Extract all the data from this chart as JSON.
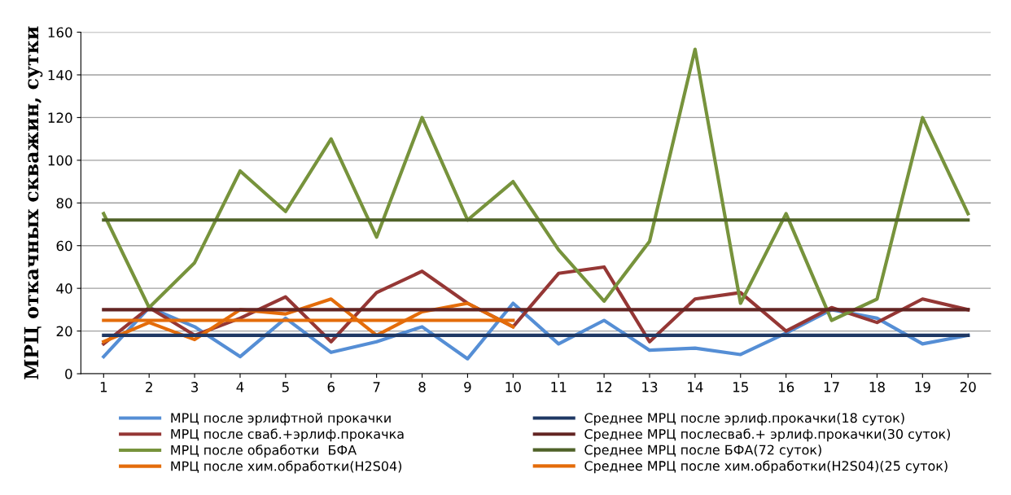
{
  "chart_data": {
    "type": "line",
    "ylabel": "МРЦ откачных скважин, сутки",
    "categories": [
      "1",
      "2",
      "3",
      "4",
      "5",
      "6",
      "7",
      "8",
      "9",
      "10",
      "11",
      "12",
      "13",
      "14",
      "15",
      "16",
      "17",
      "18",
      "19",
      "20"
    ],
    "series": [
      {
        "name": "МРЦ после эрлифтной прокачки",
        "color": "#558ed5",
        "values": [
          8,
          31,
          22,
          8,
          26,
          10,
          15,
          22,
          7,
          33,
          14,
          25,
          11,
          12,
          9,
          19,
          30,
          26,
          14,
          18
        ]
      },
      {
        "name": "МРЦ после сваб.+эрлиф.прокачка",
        "color": "#953735",
        "values": [
          14,
          31,
          18,
          26,
          36,
          15,
          38,
          48,
          33,
          22,
          47,
          50,
          15,
          35,
          38,
          20,
          31,
          24,
          35,
          30
        ]
      },
      {
        "name": "МРЦ после обработки  БФА",
        "color": "#77933c",
        "values": [
          75,
          31,
          52,
          95,
          76,
          110,
          64,
          120,
          72,
          90,
          58,
          34,
          62,
          152,
          33,
          75,
          25,
          35,
          120,
          75
        ]
      },
      {
        "name": "МРЦ после хим.обработки(H2S04)",
        "color": "#e46c0a",
        "values": [
          15,
          24,
          16,
          30,
          28,
          35,
          18,
          29,
          33,
          22,
          null,
          null,
          null,
          null,
          null,
          null,
          null,
          null,
          null,
          null
        ]
      },
      {
        "name": "Среднее МРЦ после эрлиф.прокачки(18 суток)",
        "color": "#1f3864",
        "values": [
          18,
          18,
          18,
          18,
          18,
          18,
          18,
          18,
          18,
          18,
          18,
          18,
          18,
          18,
          18,
          18,
          18,
          18,
          18,
          18
        ]
      },
      {
        "name": "Среднее МРЦ послесваб.+ эрлиф.прокачки(30 суток)",
        "color": "#632523",
        "values": [
          30,
          30,
          30,
          30,
          30,
          30,
          30,
          30,
          30,
          30,
          30,
          30,
          30,
          30,
          30,
          30,
          30,
          30,
          30,
          30
        ]
      },
      {
        "name": "Среднее МРЦ после БФА(72 суток)",
        "color": "#4f6228",
        "values": [
          72,
          72,
          72,
          72,
          72,
          72,
          72,
          72,
          72,
          72,
          72,
          72,
          72,
          72,
          72,
          72,
          72,
          72,
          72,
          72
        ]
      },
      {
        "name": "Среднее МРЦ после хим.обработки(H2S04)(25 суток)",
        "color": "#e46c0a",
        "values": [
          25,
          25,
          25,
          25,
          25,
          25,
          25,
          25,
          25,
          25,
          null,
          null,
          null,
          null,
          null,
          null,
          null,
          null,
          null,
          null
        ]
      }
    ],
    "ylim": [
      0,
      160
    ],
    "yticks": [
      0,
      20,
      40,
      60,
      80,
      100,
      120,
      140,
      160
    ],
    "grid": "y",
    "legend": "bottom",
    "marker": "none",
    "line_style": "solid"
  }
}
